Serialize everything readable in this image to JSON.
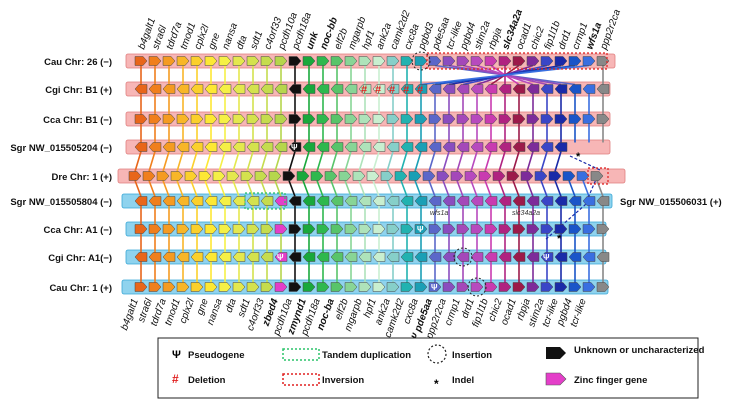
{
  "tracks": [
    {
      "label": "Cau Chr: 26 (−)",
      "band": "#f7b6b6"
    },
    {
      "label": "Cgi Chr: B1 (+)",
      "band": "#f7b6b6"
    },
    {
      "label": "Cca Chr: B1 (−)",
      "band": "#f7b6b6"
    },
    {
      "label": "Sgr NW_015505204 (−)",
      "band": "#f7b6b6"
    },
    {
      "label": "Dre Chr: 1 (+)",
      "band": "#f7b6b6"
    },
    {
      "label": "Sgr NW_015505804 (−)",
      "band": "#8fd3ee"
    },
    {
      "label": "Cca Chr: A1 (−)",
      "band": "#8fd3ee"
    },
    {
      "label": "Cgi Chr: A1(−)",
      "band": "#8fd3ee"
    },
    {
      "label": "Cau Chr: 1 (+)",
      "band": "#8fd3ee"
    }
  ],
  "right_label": "Sgr NW_015506031 (+)",
  "top_genes": [
    {
      "name": "b4galt1",
      "color": "#111"
    },
    {
      "name": "stra6l",
      "color": "#111"
    },
    {
      "name": "tdrd7a",
      "color": "#111"
    },
    {
      "name": "tmod1",
      "color": "#111"
    },
    {
      "name": "cplx2l",
      "color": "#111"
    },
    {
      "name": "gne",
      "color": "#111"
    },
    {
      "name": "nansa",
      "color": "#111"
    },
    {
      "name": "dta",
      "color": "#111"
    },
    {
      "name": "sdt1",
      "color": "#111"
    },
    {
      "name": "c4orf33",
      "color": "#111"
    },
    {
      "name": "pcdh10a",
      "color": "#111"
    },
    {
      "name": "pcdh18a",
      "color": "#111"
    },
    {
      "name": "unk",
      "color": "#e02020"
    },
    {
      "name": "noc-bb",
      "color": "#111"
    },
    {
      "name": "elf2b",
      "color": "#111"
    },
    {
      "name": "mgarpb",
      "color": "#111"
    },
    {
      "name": "hpf1",
      "color": "#111"
    },
    {
      "name": "ank2a",
      "color": "#111"
    },
    {
      "name": "camk2d2",
      "color": "#111"
    },
    {
      "name": "cxc8a",
      "color": "#111"
    },
    {
      "name": "pgbd3",
      "color": "#111"
    },
    {
      "name": "pde5aa",
      "color": "#111"
    },
    {
      "name": "tcr-like",
      "color": "#111"
    },
    {
      "name": "pgbd4",
      "color": "#111"
    },
    {
      "name": "stim2a",
      "color": "#111"
    },
    {
      "name": "rbpja",
      "color": "#111"
    },
    {
      "name": "slc34a2a",
      "color": "#e02020"
    },
    {
      "name": "ocad1",
      "color": "#111"
    },
    {
      "name": "chic2",
      "color": "#111"
    },
    {
      "name": "fip1l1b",
      "color": "#111"
    },
    {
      "name": "drd1",
      "color": "#111"
    },
    {
      "name": "crmp1",
      "color": "#111"
    },
    {
      "name": "wfs1a",
      "color": "#e02020"
    },
    {
      "name": "ppp2r2ca",
      "color": "#111"
    }
  ],
  "bottom_genes": [
    {
      "name": "b4galt1",
      "color": "#111"
    },
    {
      "name": "stra6l",
      "color": "#111"
    },
    {
      "name": "tdrd7a",
      "color": "#111"
    },
    {
      "name": "tmod1",
      "color": "#111"
    },
    {
      "name": "cplx2l",
      "color": "#111"
    },
    {
      "name": "gne",
      "color": "#111"
    },
    {
      "name": "nansa",
      "color": "#111"
    },
    {
      "name": "dta",
      "color": "#111"
    },
    {
      "name": "sdt1",
      "color": "#111"
    },
    {
      "name": "c4orf33",
      "color": "#111"
    },
    {
      "name": "zbed4",
      "color": "#3a3ae0"
    },
    {
      "name": "pcdh10a",
      "color": "#111"
    },
    {
      "name": "zmynd1",
      "color": "#3a3ae0"
    },
    {
      "name": "pcdh18a",
      "color": "#111"
    },
    {
      "name": "noc-ba",
      "color": "#111"
    },
    {
      "name": "elf2b",
      "color": "#111"
    },
    {
      "name": "mgarpb",
      "color": "#111"
    },
    {
      "name": "hpf1",
      "color": "#111"
    },
    {
      "name": "ank2a",
      "color": "#111"
    },
    {
      "name": "camk2d2",
      "color": "#111"
    },
    {
      "name": "cxc8a",
      "color": "#111"
    },
    {
      "name": "Ψ pde5aa",
      "color": "#3a3ae0"
    },
    {
      "name": "ppp2r2ca",
      "color": "#111"
    },
    {
      "name": "crmp1",
      "color": "#111"
    },
    {
      "name": "drd1",
      "color": "#111"
    },
    {
      "name": "fip1l1b",
      "color": "#111"
    },
    {
      "name": "chic2",
      "color": "#111"
    },
    {
      "name": "ocad1",
      "color": "#111"
    },
    {
      "name": "rbpja",
      "color": "#111"
    },
    {
      "name": "stim2a",
      "color": "#111"
    },
    {
      "name": "tcr-like",
      "color": "#111"
    },
    {
      "name": "pgbd4",
      "color": "#111"
    },
    {
      "name": "tcr-like",
      "color": "#111"
    }
  ],
  "inline_notes": [
    "wfs1a",
    "slc34a2a"
  ],
  "symbols": {
    "pseudo": "Ψ",
    "deletion": "#",
    "indel": "*"
  },
  "legend": {
    "pseudogene": "Pseudogene",
    "deletion": "Deletion",
    "tandem": "Tandem duplication",
    "inversion": "Inversion",
    "insertion": "Insertion",
    "indel": "Indel",
    "unknown": "Unknown or uncharacterized",
    "zinc": "Zinc finger gene"
  },
  "gene_colors": [
    "#e8661a",
    "#f07f1d",
    "#f59b22",
    "#f8b628",
    "#fbd02c",
    "#fde834",
    "#f5f046",
    "#e4e84e",
    "#d4e24e",
    "#c5dc4e",
    "#b6d64c",
    "#111111",
    "#19a83c",
    "#2eb84e",
    "#58c46a",
    "#88d596",
    "#aee3ba",
    "#c9efd0",
    "#86cfc9",
    "#22b2b0",
    "#1b9fb5",
    "#5b67c9",
    "#8a4dbf",
    "#a448b9",
    "#b74abe",
    "#c93bb0",
    "#b02380",
    "#9c1a4a",
    "#7d2b9a",
    "#3a46c7",
    "#1a2aa8",
    "#1a55c8",
    "#3a6fe0",
    "#888888"
  ]
}
